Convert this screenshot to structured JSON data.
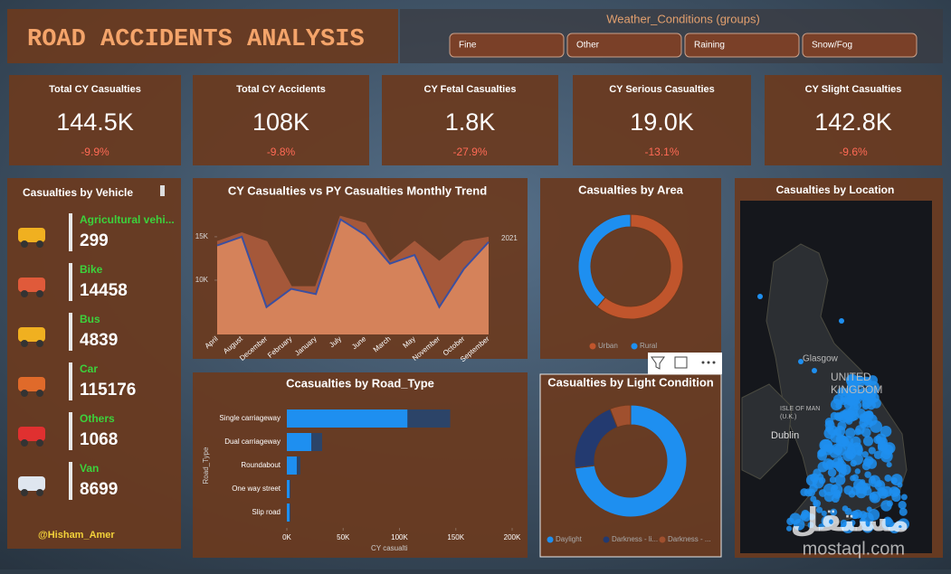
{
  "header": {
    "title": "ROAD ACCIDENTS ANALYSIS"
  },
  "slicer": {
    "title": "Weather_Conditions (groups)",
    "options": [
      "Fine",
      "Other",
      "Raining",
      "Snow/Fog"
    ]
  },
  "kpis": [
    {
      "title": "Total CY Casualties",
      "value": "144.5K",
      "change": "-9.9%"
    },
    {
      "title": "Total CY Accidents",
      "value": "108K",
      "change": "-9.8%"
    },
    {
      "title": "CY Fetal Casualties",
      "value": "1.8K",
      "change": "-27.9%"
    },
    {
      "title": "CY Serious Casualties",
      "value": "19.0K",
      "change": "-13.1%"
    },
    {
      "title": "CY Slight Casualties",
      "value": "142.8K",
      "change": "-9.6%"
    }
  ],
  "vehicles": {
    "title": "Casualties by Vehicle",
    "items": [
      {
        "name": "Agricultural vehi...",
        "value": 299
      },
      {
        "name": "Bike",
        "value": 14458
      },
      {
        "name": "Bus",
        "value": 4839
      },
      {
        "name": "Car",
        "value": 115176
      },
      {
        "name": "Others",
        "value": 1068
      },
      {
        "name": "Van",
        "value": 8699
      }
    ],
    "credit": "@Hisham_Amer"
  },
  "map": {
    "title": "Casualties by Location",
    "labels": [
      "Glasgow",
      "UNITED",
      "KINGDOM",
      "ISLE OF MAN",
      "(U.K.)",
      "Dublin"
    ]
  },
  "watermark": {
    "arabic": "مستقل",
    "latin": "mostaql.com"
  },
  "chart_data": [
    {
      "type": "area",
      "title": "CY Casualties vs PY Casualties Monthly Trend",
      "categories": [
        "April",
        "August",
        "December",
        "February",
        "January",
        "July",
        "June",
        "March",
        "May",
        "November",
        "October",
        "September"
      ],
      "ylim": [
        3750,
        17800
      ],
      "yticks": [
        {
          "value": 10000,
          "label": "10K"
        },
        {
          "value": 15000,
          "label": "15K"
        }
      ],
      "series": [
        {
          "color": "#a5583a",
          "values": [
            14400,
            15400,
            14400,
            9200,
            9200,
            17300,
            16500,
            12100,
            14400,
            12100,
            14400,
            14900
          ]
        },
        {
          "name": "2021",
          "color": "#3b4fa0",
          "values": [
            14000,
            15000,
            6900,
            9000,
            8400,
            17000,
            15200,
            11900,
            12900,
            6900,
            11300,
            14400
          ]
        }
      ]
    },
    {
      "type": "pie",
      "title": "Casualties by Area",
      "categories": [
        "Urban",
        "Rural"
      ],
      "values": [
        61,
        39
      ],
      "colors": [
        "#c0552c",
        "#1e8ff0"
      ]
    },
    {
      "type": "bar",
      "title": "Ccasualties by Road_Type",
      "y_label": "Road_Type",
      "x_label": "CY casualti",
      "categories": [
        "Single carriageway",
        "Dual carriageway",
        "Roundabout",
        "One way street",
        "Slip road"
      ],
      "xlim": [
        0,
        200000
      ],
      "xticks": [
        {
          "value": 0,
          "label": "0K"
        },
        {
          "value": 50000,
          "label": "50K"
        },
        {
          "value": 100000,
          "label": "100K"
        },
        {
          "value": 150000,
          "label": "150K"
        },
        {
          "value": 200000,
          "label": "200K"
        }
      ],
      "series": [
        {
          "color": "#2c4468",
          "values": [
            145000,
            31300,
            12000,
            3200,
            3200
          ]
        },
        {
          "color": "#1e8ff0",
          "values": [
            107000,
            21700,
            8800,
            2400,
            2400
          ]
        }
      ]
    },
    {
      "type": "pie",
      "title": "Casualties by Light Condition",
      "categories": [
        "Daylight",
        "Darkness - li...",
        "Darkness - ..."
      ],
      "values": [
        73,
        21,
        6
      ],
      "colors": [
        "#1e8ff0",
        "#233a70",
        "#a0502e"
      ]
    }
  ]
}
